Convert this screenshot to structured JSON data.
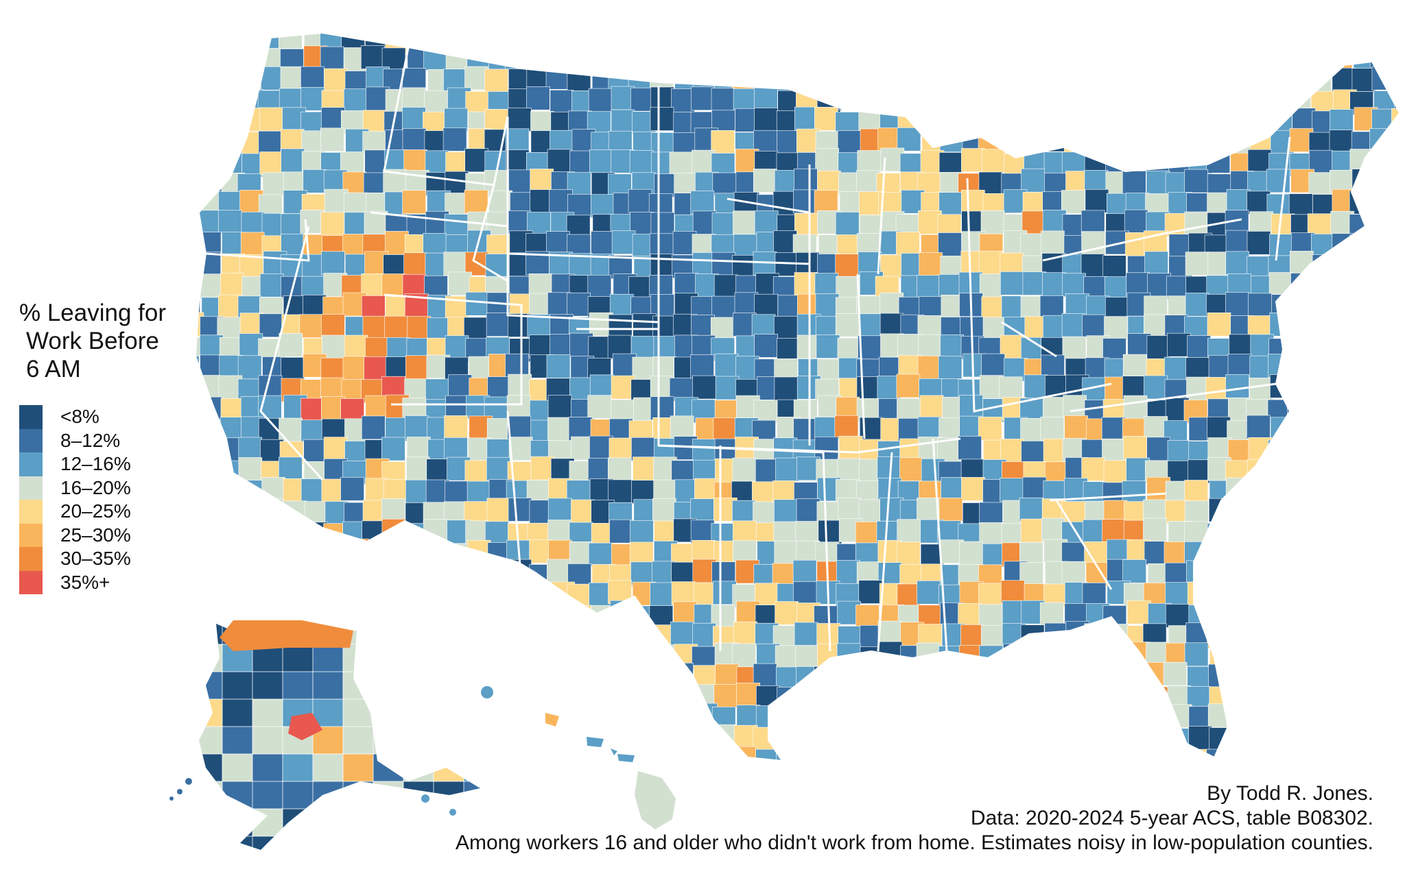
{
  "legend": {
    "title_lines": [
      "% Leaving for",
      "Work Before",
      "6 AM"
    ],
    "items": [
      {
        "label": "<8%",
        "color": "#1f4e79"
      },
      {
        "label": "8–12%",
        "color": "#3a6fa3"
      },
      {
        "label": "12–16%",
        "color": "#5b9ec6"
      },
      {
        "label": "16–20%",
        "color": "#d2e0d0"
      },
      {
        "label": "20–25%",
        "color": "#fdd98a"
      },
      {
        "label": "25–30%",
        "color": "#f9b55c"
      },
      {
        "label": "30–35%",
        "color": "#f08c3c"
      },
      {
        "label": "35%+",
        "color": "#e8584f"
      }
    ]
  },
  "caption": {
    "author": "By Todd R. Jones.",
    "source": "Data: 2020-2024 5-year ACS, table B08302.",
    "note": "Among workers 16 and older who didn't work from home. Estimates noisy in low-population counties."
  },
  "map": {
    "regions": [
      "contiguous-us",
      "alaska",
      "hawaii"
    ],
    "border_color": "#ffffff",
    "background_color": "#ffffff"
  }
}
